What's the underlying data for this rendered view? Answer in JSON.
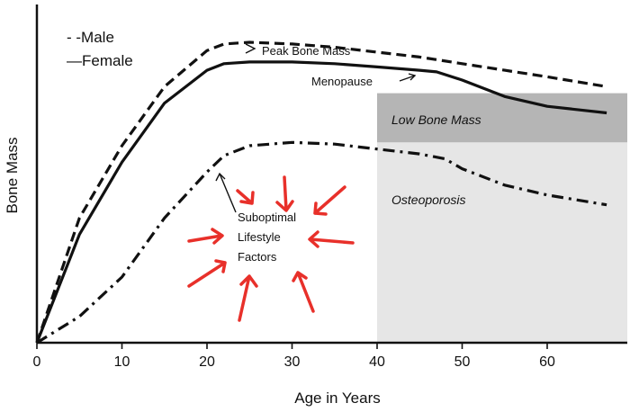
{
  "chart_data": {
    "type": "line",
    "xlabel": "Age in Years",
    "ylabel": "Bone Mass",
    "xlim": [
      0,
      70
    ],
    "ylim": [
      0,
      100
    ],
    "x_ticks": [
      0,
      10,
      20,
      30,
      40,
      50,
      60
    ],
    "x_tick_labels": [
      "0",
      "10",
      "20",
      "30",
      "40",
      "50",
      "60"
    ],
    "legend": [
      {
        "label": "- -Male",
        "style": "dashed"
      },
      {
        "label": "—Female",
        "style": "solid"
      }
    ],
    "series": [
      {
        "name": "Male",
        "style": "dashed",
        "x": [
          0,
          5,
          10,
          15,
          20,
          22,
          25,
          30,
          35,
          40,
          45,
          50,
          55,
          60,
          67
        ],
        "values": [
          0,
          38,
          60,
          78,
          89,
          91,
          91.5,
          91,
          90,
          88.5,
          87,
          85,
          83,
          81,
          78
        ]
      },
      {
        "name": "Female",
        "style": "solid",
        "x": [
          0,
          5,
          10,
          15,
          20,
          22,
          25,
          30,
          35,
          40,
          45,
          47,
          50,
          55,
          60,
          67
        ],
        "values": [
          0,
          33,
          55,
          73,
          83,
          85,
          85.5,
          85.5,
          85,
          84,
          83,
          82.5,
          80,
          75,
          72,
          70
        ]
      },
      {
        "name": "Suboptimal Lifestyle Factors",
        "style": "dashdot",
        "x": [
          0,
          5,
          10,
          15,
          20,
          22,
          25,
          30,
          35,
          40,
          45,
          48,
          50,
          55,
          60,
          67
        ],
        "values": [
          0,
          8,
          20,
          38,
          52,
          57,
          60,
          61,
          60.5,
          59,
          57.5,
          56,
          53,
          48,
          45,
          42
        ]
      }
    ],
    "regions": [
      {
        "label": "Low Bone Mass",
        "x_start": 40,
        "x_end": 70,
        "y_low": 61,
        "y_high": 76,
        "color": "#b5b5b5"
      },
      {
        "label": "Osteoporosis",
        "x_start": 40,
        "x_end": 70,
        "y_low": 0,
        "y_high": 61,
        "color": "#e6e6e6"
      }
    ],
    "annotations": [
      {
        "text": "Peak Bone Mass",
        "x": 25.8,
        "y": 89
      },
      {
        "text": "Menopause",
        "x": 32.5,
        "y": 78
      },
      {
        "text": "Suboptimal",
        "x": 23.5,
        "y": 37
      },
      {
        "text": "Lifestyle",
        "x": 23.5,
        "y": 31.5
      },
      {
        "text": "Factors",
        "x": 23.5,
        "y": 26
      }
    ],
    "colors": {
      "line": "#111111",
      "arrow": "#e8302a"
    }
  }
}
